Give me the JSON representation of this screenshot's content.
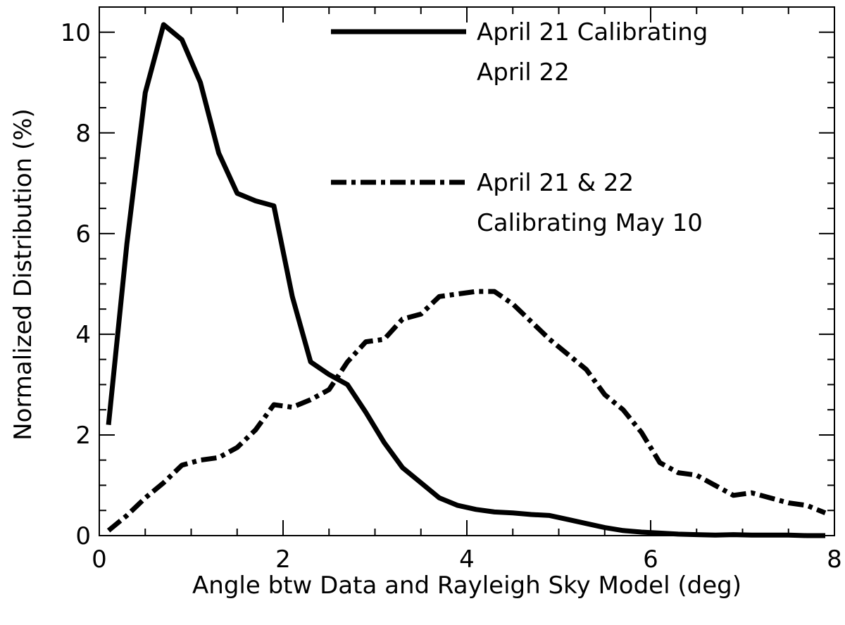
{
  "chart_data": {
    "type": "line",
    "title": "",
    "xlabel": "Angle btw Data and Rayleigh Sky Model (deg)",
    "ylabel": "Normalized Distribution (%)",
    "xlim": [
      0,
      8
    ],
    "ylim": [
      0,
      10.5
    ],
    "xticks": [
      "0",
      "2",
      "4",
      "6",
      "8"
    ],
    "yticks": [
      "0",
      "2",
      "4",
      "6",
      "8",
      "10"
    ],
    "xtick_values": [
      0,
      2,
      4,
      6,
      8
    ],
    "ytick_values": [
      0,
      2,
      4,
      6,
      8,
      10
    ],
    "grid": false,
    "legend_placement": "top-right",
    "series": [
      {
        "style": "solid",
        "color": "#000000",
        "legend_lines": [
          "April 21 Calibrating",
          "April 22"
        ],
        "x": [
          0.1,
          0.3,
          0.5,
          0.7,
          0.9,
          1.1,
          1.3,
          1.5,
          1.7,
          1.9,
          2.1,
          2.3,
          2.5,
          2.7,
          2.9,
          3.1,
          3.3,
          3.5,
          3.7,
          3.9,
          4.1,
          4.3,
          4.5,
          4.7,
          4.9,
          5.1,
          5.3,
          5.5,
          5.7,
          5.9,
          6.1,
          6.3,
          6.5,
          6.7,
          6.9,
          7.1,
          7.3,
          7.5,
          7.7,
          7.9
        ],
        "y": [
          2.2,
          5.8,
          8.8,
          10.15,
          9.85,
          9.0,
          7.6,
          6.8,
          6.65,
          6.55,
          4.75,
          3.45,
          3.2,
          3.0,
          2.45,
          1.85,
          1.35,
          1.05,
          0.75,
          0.6,
          0.52,
          0.47,
          0.45,
          0.42,
          0.4,
          0.32,
          0.24,
          0.16,
          0.1,
          0.07,
          0.05,
          0.03,
          0.02,
          0.01,
          0.02,
          0.01,
          0.01,
          0.01,
          0.0,
          0.0
        ]
      },
      {
        "style": "dash-dot",
        "color": "#000000",
        "legend_lines": [
          "April 21 & 22",
          "Calibrating May 10"
        ],
        "x": [
          0.1,
          0.3,
          0.5,
          0.7,
          0.9,
          1.1,
          1.3,
          1.5,
          1.7,
          1.9,
          2.1,
          2.3,
          2.5,
          2.7,
          2.9,
          3.1,
          3.3,
          3.5,
          3.7,
          3.9,
          4.1,
          4.3,
          4.5,
          4.7,
          4.9,
          5.1,
          5.3,
          5.5,
          5.7,
          5.9,
          6.1,
          6.3,
          6.5,
          6.7,
          6.9,
          7.1,
          7.3,
          7.5,
          7.7,
          7.9
        ],
        "y": [
          0.1,
          0.4,
          0.75,
          1.05,
          1.4,
          1.5,
          1.55,
          1.75,
          2.1,
          2.6,
          2.55,
          2.7,
          2.9,
          3.45,
          3.85,
          3.9,
          4.3,
          4.4,
          4.75,
          4.8,
          4.85,
          4.85,
          4.6,
          4.25,
          3.9,
          3.6,
          3.3,
          2.8,
          2.5,
          2.05,
          1.45,
          1.25,
          1.2,
          1.0,
          0.8,
          0.85,
          0.75,
          0.65,
          0.6,
          0.45
        ]
      }
    ]
  }
}
